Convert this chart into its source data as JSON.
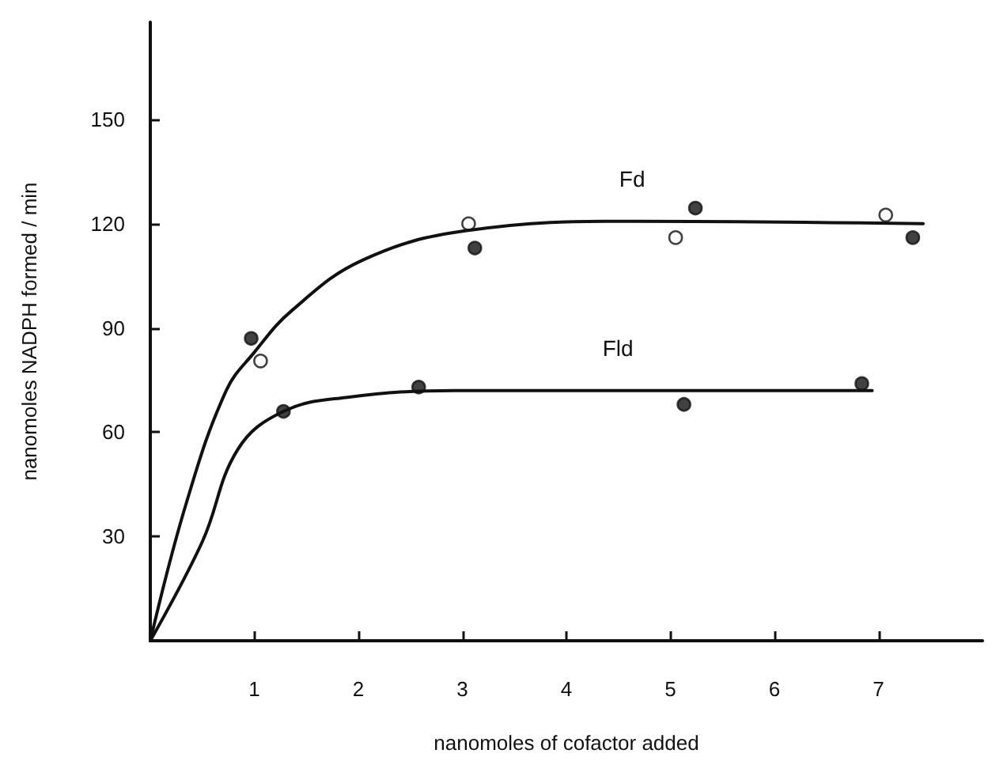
{
  "chart_data": {
    "type": "scatter",
    "xlabel": "nanomoles of cofactor added",
    "ylabel": "nanomoles NADPH formed / min",
    "xlim": [
      0,
      8
    ],
    "xticks": [
      1,
      2,
      3,
      4,
      5,
      6,
      7
    ],
    "ylim": [
      0,
      178
    ],
    "yticks": [
      30,
      60,
      90,
      120,
      150
    ],
    "grid": false,
    "legend": false,
    "marker": "circle",
    "series": [
      {
        "name": "Fd",
        "type": "line",
        "marker": "none",
        "color": "#111111",
        "x": [
          0,
          0.35,
          0.73,
          1,
          1.36,
          2.04,
          3.04,
          4.66,
          7.43
        ],
        "values": [
          0,
          40,
          72,
          83,
          95,
          109.5,
          118,
          120.7,
          120
        ]
      },
      {
        "name": "Fld",
        "type": "line",
        "marker": "none",
        "color": "#111111",
        "x": [
          0,
          0.5,
          0.84,
          1.28,
          1.88,
          2.93,
          4.5,
          6.94
        ],
        "values": [
          0,
          28.5,
          55,
          66,
          70,
          72,
          72,
          72
        ]
      },
      {
        "color": "#111111",
        "x": [
          0.97,
          1.28,
          2.58,
          3.12,
          5.24,
          5.13,
          6.84,
          7.33
        ],
        "values": [
          87,
          66,
          73,
          113,
          124.5,
          68,
          74,
          116
        ]
      },
      {
        "color": "#ffffff",
        "x": [
          1.06,
          3.06,
          5.05,
          7.07
        ],
        "values": [
          80.5,
          120,
          116,
          122.5
        ]
      }
    ]
  }
}
